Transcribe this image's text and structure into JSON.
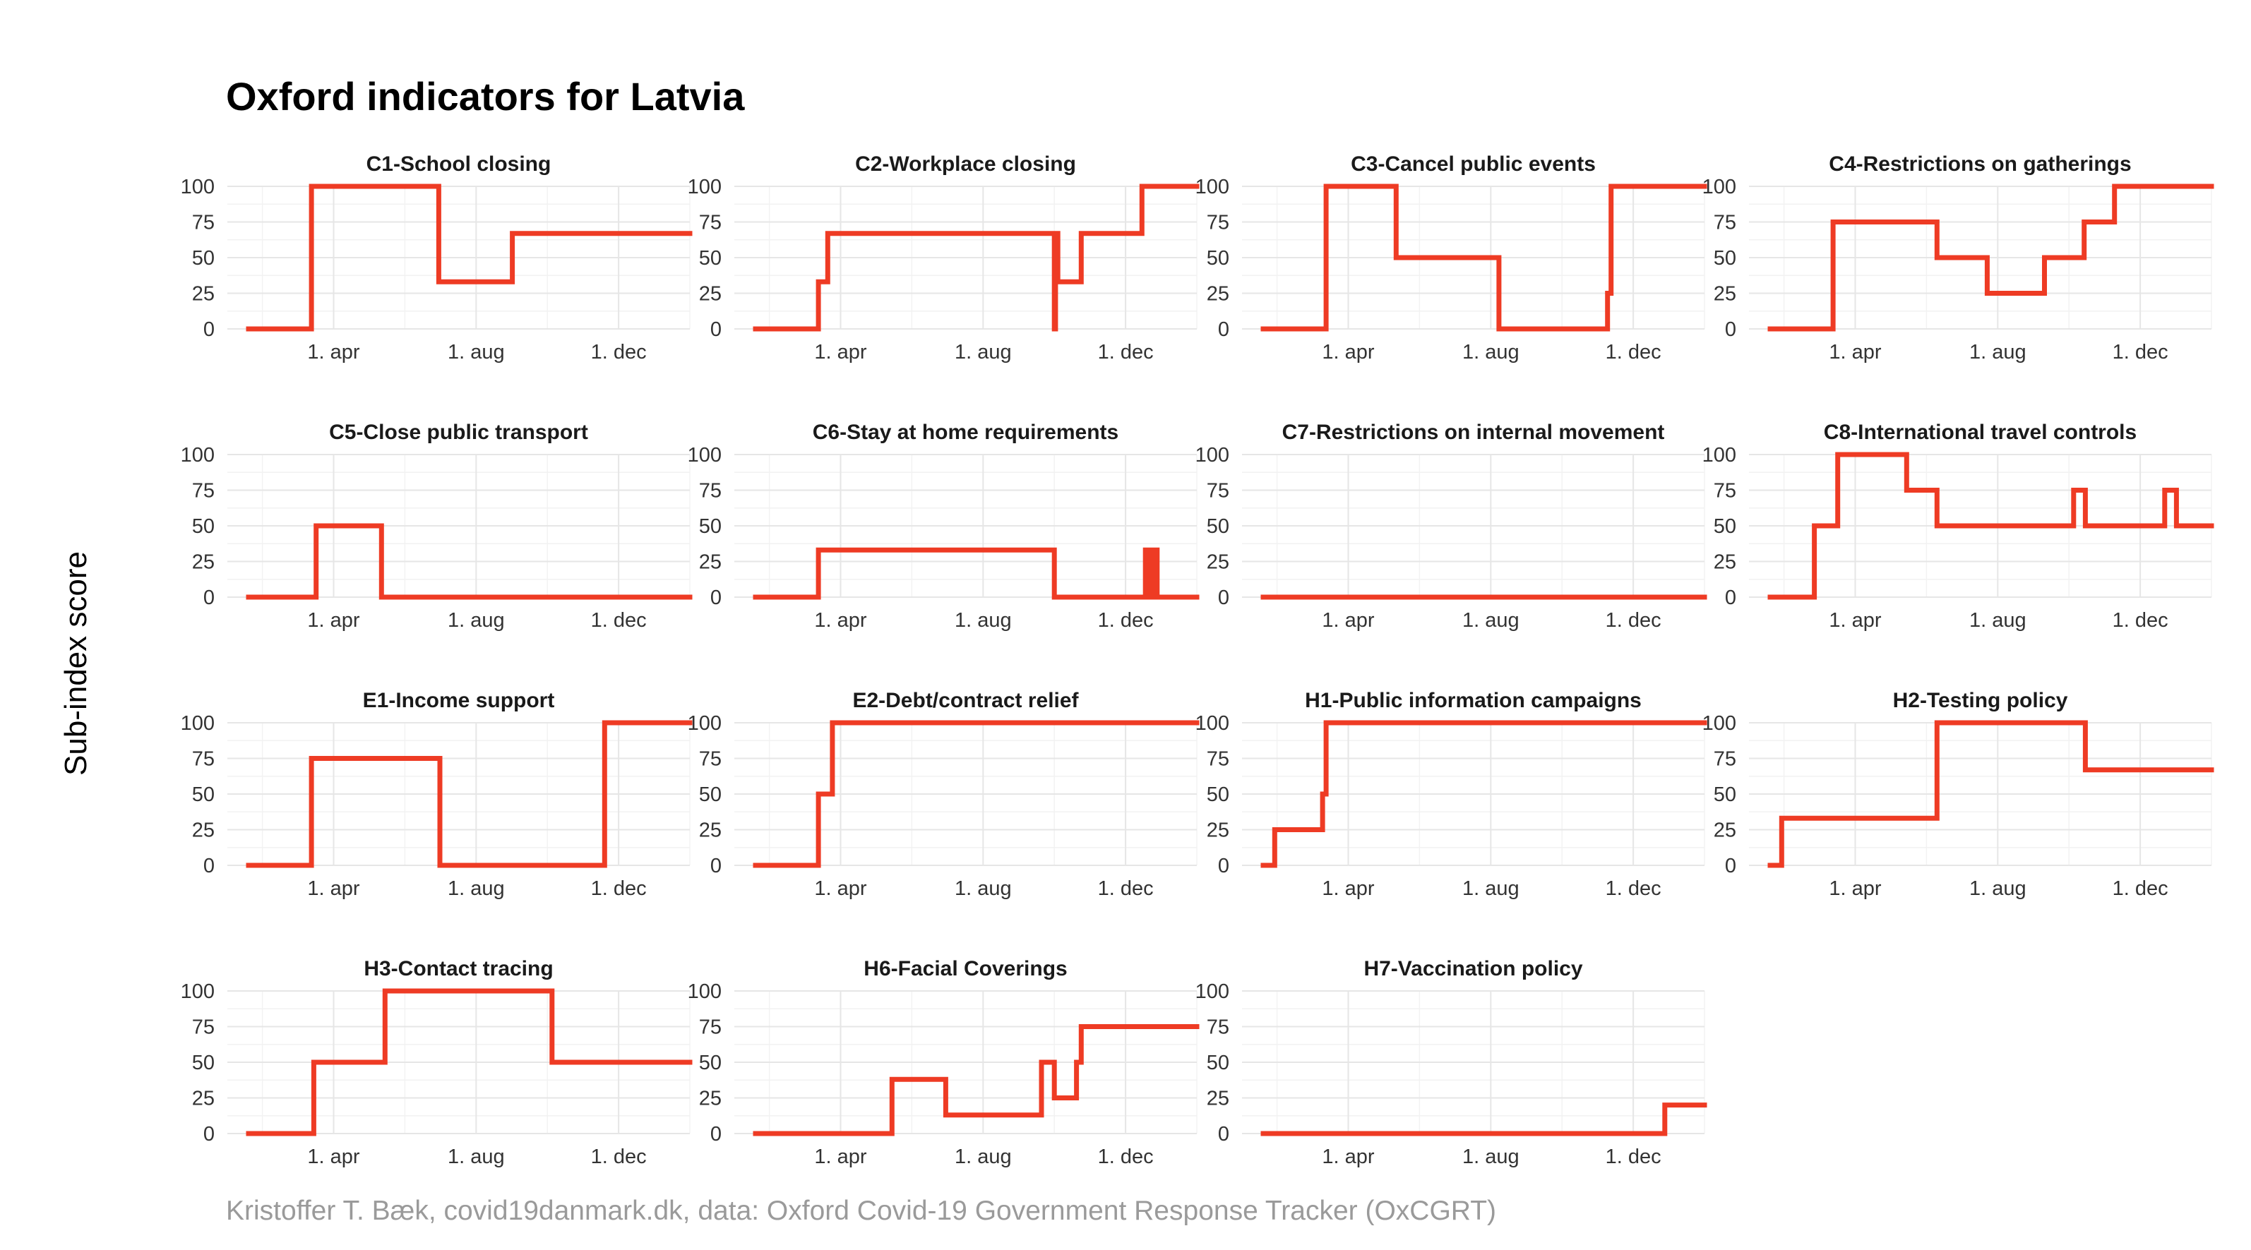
{
  "title": "Oxford indicators for Latvia",
  "ylabel": "Sub-index score",
  "caption": "Kristoffer T. Bæk, covid19danmark.dk, data: Oxford Covid-19 Government Response Tracker (OxCGRT)",
  "colors": {
    "line": "#ee3b24",
    "grid": "#e6e6e6",
    "caption": "#9a9a9a"
  },
  "chart_data": [
    {
      "type": "line",
      "title": "C1-School closing",
      "xlim": [
        "2020-01-01",
        "2021-01-31"
      ],
      "ylim": [
        0,
        100
      ],
      "yticks": [
        0,
        25,
        50,
        75,
        100
      ],
      "xticks": [
        {
          "date": "2020-04-01",
          "label": "1. apr"
        },
        {
          "date": "2020-08-01",
          "label": "1. aug"
        },
        {
          "date": "2020-12-01",
          "label": "1. dec"
        }
      ],
      "series": [
        {
          "step": true,
          "x": [
            "2020-01-01",
            "2020-03-13",
            "2020-06-04",
            "2020-06-30",
            "2020-09-01"
          ],
          "values": [
            0,
            100,
            100,
            33,
            67
          ],
          "x_end": "2021-01-31"
        }
      ]
    },
    {
      "type": "line",
      "title": "C2-Workplace closing",
      "xlim": [
        "2020-01-01",
        "2021-01-31"
      ],
      "ylim": [
        0,
        100
      ],
      "yticks": [
        0,
        25,
        50,
        75,
        100
      ],
      "xticks": [
        {
          "date": "2020-04-01",
          "label": "1. apr"
        },
        {
          "date": "2020-08-01",
          "label": "1. aug"
        },
        {
          "date": "2020-12-01",
          "label": "1. dec"
        }
      ],
      "series": [
        {
          "step": true,
          "x": [
            "2020-01-01",
            "2020-03-13",
            "2020-03-21",
            "2020-10-01",
            "2020-10-02",
            "2020-10-04",
            "2020-10-24",
            "2020-12-15"
          ],
          "values": [
            0,
            33,
            67,
            0,
            67,
            33,
            67,
            100
          ],
          "x_end": "2021-01-31"
        }
      ]
    },
    {
      "type": "line",
      "title": "C3-Cancel public events",
      "xlim": [
        "2020-01-01",
        "2021-01-31"
      ],
      "ylim": [
        0,
        100
      ],
      "yticks": [
        0,
        25,
        50,
        75,
        100
      ],
      "xticks": [
        {
          "date": "2020-04-01",
          "label": "1. apr"
        },
        {
          "date": "2020-08-01",
          "label": "1. aug"
        },
        {
          "date": "2020-12-01",
          "label": "1. dec"
        }
      ],
      "series": [
        {
          "step": true,
          "x": [
            "2020-01-01",
            "2020-03-13",
            "2020-05-12",
            "2020-08-08",
            "2020-11-09",
            "2020-11-12"
          ],
          "values": [
            0,
            100,
            50,
            0,
            25,
            100
          ],
          "x_end": "2021-01-31"
        }
      ]
    },
    {
      "type": "line",
      "title": "C4-Restrictions on gatherings",
      "xlim": [
        "2020-01-01",
        "2021-01-31"
      ],
      "ylim": [
        0,
        100
      ],
      "yticks": [
        0,
        25,
        50,
        75,
        100
      ],
      "xticks": [
        {
          "date": "2020-04-01",
          "label": "1. apr"
        },
        {
          "date": "2020-08-01",
          "label": "1. aug"
        },
        {
          "date": "2020-12-01",
          "label": "1. dec"
        }
      ],
      "series": [
        {
          "step": true,
          "x": [
            "2020-01-01",
            "2020-03-13",
            "2020-06-10",
            "2020-07-23",
            "2020-09-10",
            "2020-10-14",
            "2020-11-09"
          ],
          "values": [
            0,
            75,
            50,
            25,
            50,
            75,
            100
          ],
          "x_end": "2021-01-31"
        }
      ]
    },
    {
      "type": "line",
      "title": "C5-Close public transport",
      "xlim": [
        "2020-01-01",
        "2021-01-31"
      ],
      "ylim": [
        0,
        100
      ],
      "yticks": [
        0,
        25,
        50,
        75,
        100
      ],
      "xticks": [
        {
          "date": "2020-04-01",
          "label": "1. apr"
        },
        {
          "date": "2020-08-01",
          "label": "1. aug"
        },
        {
          "date": "2020-12-01",
          "label": "1. dec"
        }
      ],
      "series": [
        {
          "step": true,
          "x": [
            "2020-01-01",
            "2020-03-17",
            "2020-05-12"
          ],
          "values": [
            0,
            50,
            0
          ],
          "x_end": "2021-01-31"
        }
      ]
    },
    {
      "type": "line",
      "title": "C6-Stay at home requirements",
      "xlim": [
        "2020-01-01",
        "2021-01-31"
      ],
      "ylim": [
        0,
        100
      ],
      "yticks": [
        0,
        25,
        50,
        75,
        100
      ],
      "xticks": [
        {
          "date": "2020-04-01",
          "label": "1. apr"
        },
        {
          "date": "2020-08-01",
          "label": "1. aug"
        },
        {
          "date": "2020-12-01",
          "label": "1. dec"
        }
      ],
      "series": [
        {
          "step": true,
          "x": [
            "2020-01-01",
            "2020-03-13",
            "2020-10-01",
            "2020-12-18",
            "2020-12-20",
            "2020-12-22",
            "2020-12-24",
            "2020-12-26",
            "2020-12-28"
          ],
          "values": [
            0,
            33,
            0,
            33,
            0,
            33,
            0,
            33,
            0
          ],
          "x_end": "2021-01-31"
        }
      ]
    },
    {
      "type": "line",
      "title": "C7-Restrictions on internal movement",
      "xlim": [
        "2020-01-01",
        "2021-01-31"
      ],
      "ylim": [
        0,
        100
      ],
      "yticks": [
        0,
        25,
        50,
        75,
        100
      ],
      "xticks": [
        {
          "date": "2020-04-01",
          "label": "1. apr"
        },
        {
          "date": "2020-08-01",
          "label": "1. aug"
        },
        {
          "date": "2020-12-01",
          "label": "1. dec"
        }
      ],
      "series": [
        {
          "step": true,
          "x": [
            "2020-01-01"
          ],
          "values": [
            0
          ],
          "x_end": "2021-01-31"
        }
      ]
    },
    {
      "type": "line",
      "title": "C8-International travel controls",
      "xlim": [
        "2020-01-01",
        "2021-01-31"
      ],
      "ylim": [
        0,
        100
      ],
      "yticks": [
        0,
        25,
        50,
        75,
        100
      ],
      "xticks": [
        {
          "date": "2020-04-01",
          "label": "1. apr"
        },
        {
          "date": "2020-08-01",
          "label": "1. aug"
        },
        {
          "date": "2020-12-01",
          "label": "1. dec"
        }
      ],
      "series": [
        {
          "step": true,
          "x": [
            "2020-01-01",
            "2020-02-26",
            "2020-03-17",
            "2020-05-15",
            "2020-06-10",
            "2020-10-05",
            "2020-10-15",
            "2020-12-22",
            "2021-01-01"
          ],
          "values": [
            0,
            50,
            100,
            75,
            50,
            75,
            50,
            75,
            50
          ],
          "x_end": "2021-01-31"
        }
      ]
    },
    {
      "type": "line",
      "title": "E1-Income support",
      "xlim": [
        "2020-01-01",
        "2021-01-31"
      ],
      "ylim": [
        0,
        100
      ],
      "yticks": [
        0,
        25,
        50,
        75,
        100
      ],
      "xticks": [
        {
          "date": "2020-04-01",
          "label": "1. apr"
        },
        {
          "date": "2020-08-01",
          "label": "1. aug"
        },
        {
          "date": "2020-12-01",
          "label": "1. dec"
        }
      ],
      "series": [
        {
          "step": true,
          "x": [
            "2020-01-01",
            "2020-03-13",
            "2020-07-01",
            "2020-11-19"
          ],
          "values": [
            0,
            75,
            0,
            100
          ],
          "x_end": "2021-01-31"
        }
      ]
    },
    {
      "type": "line",
      "title": "E2-Debt/contract relief",
      "xlim": [
        "2020-01-01",
        "2021-01-31"
      ],
      "ylim": [
        0,
        100
      ],
      "yticks": [
        0,
        25,
        50,
        75,
        100
      ],
      "xticks": [
        {
          "date": "2020-04-01",
          "label": "1. apr"
        },
        {
          "date": "2020-08-01",
          "label": "1. aug"
        },
        {
          "date": "2020-12-01",
          "label": "1. dec"
        }
      ],
      "series": [
        {
          "step": true,
          "x": [
            "2020-01-01",
            "2020-03-13",
            "2020-03-25"
          ],
          "values": [
            0,
            50,
            100
          ],
          "x_end": "2021-01-31"
        }
      ]
    },
    {
      "type": "line",
      "title": "H1-Public information campaigns",
      "xlim": [
        "2020-01-01",
        "2021-01-31"
      ],
      "ylim": [
        0,
        100
      ],
      "yticks": [
        0,
        25,
        50,
        75,
        100
      ],
      "xticks": [
        {
          "date": "2020-04-01",
          "label": "1. apr"
        },
        {
          "date": "2020-08-01",
          "label": "1. aug"
        },
        {
          "date": "2020-12-01",
          "label": "1. dec"
        }
      ],
      "series": [
        {
          "step": true,
          "x": [
            "2020-01-01",
            "2020-01-29",
            "2020-03-10",
            "2020-03-13"
          ],
          "values": [
            0,
            25,
            50,
            100
          ],
          "x_end": "2021-01-31"
        }
      ]
    },
    {
      "type": "line",
      "title": "H2-Testing policy",
      "xlim": [
        "2020-01-01",
        "2021-01-31"
      ],
      "ylim": [
        0,
        100
      ],
      "yticks": [
        0,
        25,
        50,
        75,
        100
      ],
      "xticks": [
        {
          "date": "2020-04-01",
          "label": "1. apr"
        },
        {
          "date": "2020-08-01",
          "label": "1. aug"
        },
        {
          "date": "2020-12-01",
          "label": "1. dec"
        }
      ],
      "series": [
        {
          "step": true,
          "x": [
            "2020-01-01",
            "2020-01-29",
            "2020-06-10",
            "2020-10-15"
          ],
          "values": [
            0,
            33,
            100,
            67
          ],
          "x_end": "2021-01-31"
        }
      ]
    },
    {
      "type": "line",
      "title": "H3-Contact tracing",
      "xlim": [
        "2020-01-01",
        "2021-01-31"
      ],
      "ylim": [
        0,
        100
      ],
      "yticks": [
        0,
        25,
        50,
        75,
        100
      ],
      "xticks": [
        {
          "date": "2020-04-01",
          "label": "1. apr"
        },
        {
          "date": "2020-08-01",
          "label": "1. aug"
        },
        {
          "date": "2020-12-01",
          "label": "1. dec"
        }
      ],
      "series": [
        {
          "step": true,
          "x": [
            "2020-01-01",
            "2020-03-15",
            "2020-05-15",
            "2020-10-05"
          ],
          "values": [
            0,
            50,
            100,
            50
          ],
          "x_end": "2021-01-31"
        }
      ]
    },
    {
      "type": "line",
      "title": "H6-Facial Coverings",
      "xlim": [
        "2020-01-01",
        "2021-01-31"
      ],
      "ylim": [
        0,
        100
      ],
      "yticks": [
        0,
        25,
        50,
        75,
        100
      ],
      "xticks": [
        {
          "date": "2020-04-01",
          "label": "1. apr"
        },
        {
          "date": "2020-08-01",
          "label": "1. aug"
        },
        {
          "date": "2020-12-01",
          "label": "1. dec"
        }
      ],
      "series": [
        {
          "step": true,
          "x": [
            "2020-01-01",
            "2020-05-15",
            "2020-06-30",
            "2020-09-20",
            "2020-10-01",
            "2020-10-20",
            "2020-10-24"
          ],
          "values": [
            0,
            38,
            13,
            50,
            25,
            50,
            75
          ],
          "x_end": "2021-01-31"
        }
      ]
    },
    {
      "type": "line",
      "title": "H7-Vaccination policy",
      "xlim": [
        "2020-01-01",
        "2021-01-31"
      ],
      "ylim": [
        0,
        100
      ],
      "yticks": [
        0,
        25,
        50,
        75,
        100
      ],
      "xticks": [
        {
          "date": "2020-04-01",
          "label": "1. apr"
        },
        {
          "date": "2020-08-01",
          "label": "1. aug"
        },
        {
          "date": "2020-12-01",
          "label": "1. dec"
        }
      ],
      "series": [
        {
          "step": true,
          "x": [
            "2020-01-01",
            "2020-12-28"
          ],
          "values": [
            0,
            20
          ],
          "x_end": "2021-01-31"
        }
      ]
    }
  ]
}
